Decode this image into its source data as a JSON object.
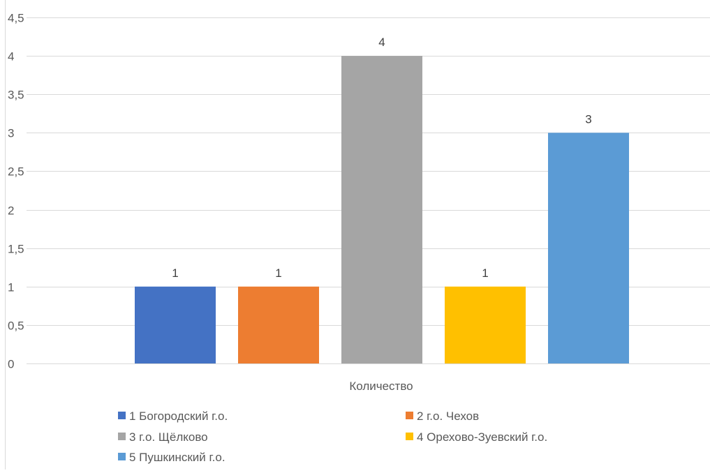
{
  "chart_data": {
    "type": "bar",
    "categories": [
      "Количество"
    ],
    "series": [
      {
        "name": "1 Богородский г.о.",
        "values": [
          1
        ],
        "color": "#4472C4"
      },
      {
        "name": "2 г.о. Чехов",
        "values": [
          1
        ],
        "color": "#ED7D31"
      },
      {
        "name": "3 г.о. Щёлково",
        "values": [
          4
        ],
        "color": "#A5A5A5"
      },
      {
        "name": "4 Орехово-Зуевский г.о.",
        "values": [
          1
        ],
        "color": "#FFC000"
      },
      {
        "name": "5 Пушкинский г.о.",
        "values": [
          3
        ],
        "color": "#5B9BD5"
      }
    ],
    "data_labels": [
      "1",
      "1",
      "4",
      "1",
      "3"
    ],
    "xlabel": "Количество",
    "ylabel": "",
    "ylim": [
      0,
      4.5
    ],
    "yticks": [
      {
        "value": 0,
        "label": "0"
      },
      {
        "value": 0.5,
        "label": "0,5"
      },
      {
        "value": 1,
        "label": "1"
      },
      {
        "value": 1.5,
        "label": "1,5"
      },
      {
        "value": 2,
        "label": "2"
      },
      {
        "value": 2.5,
        "label": "2,5"
      },
      {
        "value": 3,
        "label": "3"
      },
      {
        "value": 3.5,
        "label": "3,5"
      },
      {
        "value": 4,
        "label": "4"
      },
      {
        "value": 4.5,
        "label": "4,5"
      }
    ],
    "grid": true,
    "legend_position": "bottom"
  }
}
